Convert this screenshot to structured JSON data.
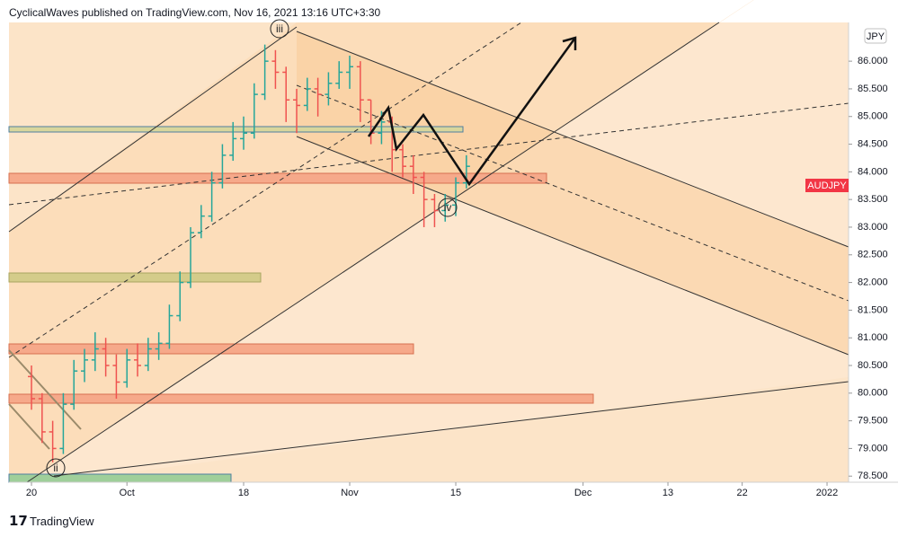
{
  "header": {
    "author_line": "CyclicalWaves published on TradingView.com, Nov 16, 2021 13:16 UTC+3:30"
  },
  "chart_data": {
    "type": "ohlc",
    "symbol": "AUDJPY",
    "currency": "JPY",
    "wave_labels": [
      "iii",
      "ii",
      "iv"
    ],
    "up_color": "#26a69a",
    "down_color": "#ef5350",
    "x": [
      0,
      1,
      2,
      3,
      4,
      5,
      6,
      7,
      8,
      9,
      10,
      11,
      12,
      13,
      14,
      15,
      16,
      17,
      18,
      19,
      20,
      21,
      22,
      23,
      24,
      25,
      26,
      27,
      28,
      29,
      30,
      31,
      32,
      33,
      34,
      35,
      36,
      37,
      38,
      39,
      40,
      41
    ],
    "open": [
      80.3,
      79.9,
      79.3,
      79.0,
      79.8,
      80.4,
      80.6,
      80.8,
      80.5,
      80.2,
      80.6,
      80.5,
      80.8,
      80.9,
      81.4,
      82.0,
      82.9,
      83.2,
      83.8,
      84.3,
      84.6,
      84.7,
      85.4,
      86.0,
      85.8,
      85.3,
      85.2,
      85.5,
      85.4,
      85.6,
      85.8,
      85.9,
      85.3,
      84.7,
      84.9,
      84.4,
      84.1,
      83.9,
      83.5,
      83.3,
      83.4,
      83.8
    ],
    "high": [
      80.5,
      80.0,
      79.5,
      80.0,
      80.6,
      80.8,
      81.1,
      81.0,
      80.7,
      80.8,
      80.9,
      81.0,
      81.1,
      81.6,
      82.2,
      83.0,
      83.4,
      84.0,
      84.5,
      84.9,
      85.0,
      85.6,
      86.3,
      86.2,
      85.9,
      85.5,
      85.7,
      85.7,
      85.8,
      86.0,
      86.1,
      86.0,
      85.3,
      85.1,
      85.0,
      84.5,
      84.3,
      84.0,
      83.6,
      83.6,
      83.9,
      84.3
    ],
    "low": [
      79.7,
      79.1,
      78.75,
      78.9,
      79.7,
      80.2,
      80.4,
      80.3,
      79.9,
      80.1,
      80.3,
      80.4,
      80.6,
      80.8,
      81.3,
      81.9,
      82.8,
      83.1,
      83.7,
      84.2,
      84.4,
      84.6,
      85.3,
      85.5,
      84.9,
      84.7,
      85.1,
      85.0,
      85.2,
      85.5,
      85.5,
      84.9,
      84.5,
      84.5,
      84.0,
      83.9,
      83.6,
      83.0,
      83.0,
      83.1,
      83.2,
      83.7
    ],
    "close": [
      79.9,
      79.3,
      79.0,
      79.8,
      80.4,
      80.6,
      80.8,
      80.5,
      80.2,
      80.6,
      80.5,
      80.8,
      80.9,
      81.4,
      82.0,
      82.9,
      83.2,
      83.8,
      84.3,
      84.6,
      84.7,
      85.4,
      86.0,
      85.8,
      85.3,
      85.2,
      85.5,
      85.4,
      85.6,
      85.8,
      85.9,
      85.3,
      84.7,
      84.9,
      84.4,
      84.1,
      83.9,
      83.5,
      83.3,
      83.4,
      83.8,
      84.1
    ],
    "xlim": [
      -2.12,
      77.03
    ],
    "xticks": [
      {
        "value": 0,
        "label": "20"
      },
      {
        "value": 9,
        "label": "Oct"
      },
      {
        "value": 20,
        "label": "18"
      },
      {
        "value": 30,
        "label": "Nov"
      },
      {
        "value": 40,
        "label": "15"
      },
      {
        "value": 52,
        "label": "Dec"
      },
      {
        "value": 60,
        "label": "13"
      },
      {
        "value": 67,
        "label": "22"
      },
      {
        "value": 75,
        "label": "2022"
      }
    ],
    "ylim": [
      78.39,
      86.7
    ],
    "yticks": [
      {
        "value": 78.5,
        "label": "78.500"
      },
      {
        "value": 79,
        "label": "79.000"
      },
      {
        "value": 79.5,
        "label": "79.500"
      },
      {
        "value": 80,
        "label": "80.000"
      },
      {
        "value": 80.5,
        "label": "80.500"
      },
      {
        "value": 81,
        "label": "81.000"
      },
      {
        "value": 81.5,
        "label": "81.500"
      },
      {
        "value": 82,
        "label": "82.000"
      },
      {
        "value": 82.5,
        "label": "82.500"
      },
      {
        "value": 83,
        "label": "83.000"
      },
      {
        "value": 83.5,
        "label": "83.500"
      },
      {
        "value": 84,
        "label": "84.000"
      },
      {
        "value": 84.5,
        "label": "84.500"
      },
      {
        "value": 85,
        "label": "85.000"
      },
      {
        "value": 85.5,
        "label": "85.500"
      },
      {
        "value": 86,
        "label": "86.000"
      }
    ]
  },
  "footer": {
    "brand": "TradingView"
  }
}
